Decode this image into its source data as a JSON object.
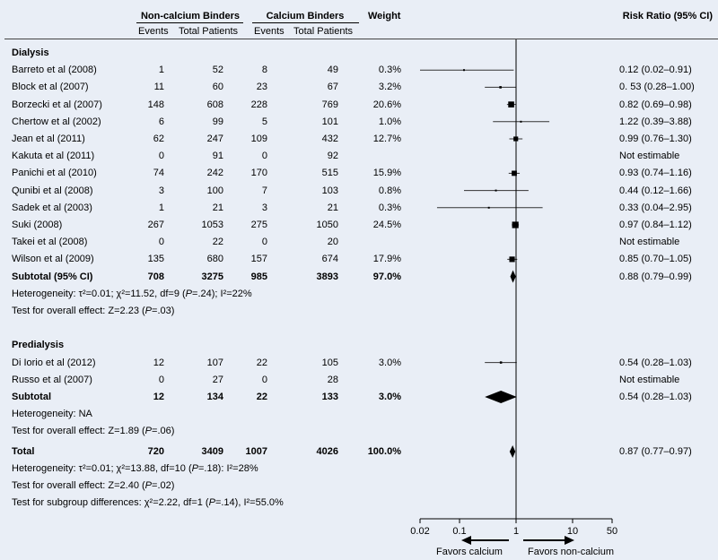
{
  "header": {
    "noncalc_group": "Non-calcium Binders",
    "calc_group": "Calcium Binders",
    "events": "Events",
    "total_patients": "Total Patients",
    "weight": "Weight",
    "rr": "Risk Ratio (95% CI)"
  },
  "groups": [
    {
      "name": "Dialysis",
      "studies": [
        {
          "study": "Barreto et al (2008)",
          "e1": "1",
          "n1": "52",
          "e2": "8",
          "n2": "49",
          "weight": "0.3%",
          "ci": "0.12 (0.02–0.91)"
        },
        {
          "study": "Block et al (2007)",
          "e1": "11",
          "n1": "60",
          "e2": "23",
          "n2": "67",
          "weight": "3.2%",
          "ci": "0. 53 (0.28–1.00)"
        },
        {
          "study": "Borzecki et al (2007)",
          "e1": "148",
          "n1": "608",
          "e2": "228",
          "n2": "769",
          "weight": "20.6%",
          "ci": "0.82 (0.69–0.98)"
        },
        {
          "study": "Chertow et al (2002)",
          "e1": "6",
          "n1": "99",
          "e2": "5",
          "n2": "101",
          "weight": "1.0%",
          "ci": "1.22 (0.39–3.88)"
        },
        {
          "study": "Jean et al (2011)",
          "e1": "62",
          "n1": "247",
          "e2": "109",
          "n2": "432",
          "weight": "12.7%",
          "ci": "0.99 (0.76–1.30)"
        },
        {
          "study": "Kakuta et al (2011)",
          "e1": "0",
          "n1": "91",
          "e2": "0",
          "n2": "92",
          "weight": "",
          "ci": "Not estimable"
        },
        {
          "study": "Panichi et al (2010)",
          "e1": "74",
          "n1": "242",
          "e2": "170",
          "n2": "515",
          "weight": "15.9%",
          "ci": "0.93 (0.74–1.16)"
        },
        {
          "study": "Qunibi et al (2008)",
          "e1": "3",
          "n1": "100",
          "e2": "7",
          "n2": "103",
          "weight": "0.8%",
          "ci": "0.44 (0.12–1.66)"
        },
        {
          "study": "Sadek et al (2003)",
          "e1": "1",
          "n1": "21",
          "e2": "3",
          "n2": "21",
          "weight": "0.3%",
          "ci": "0.33 (0.04–2.95)"
        },
        {
          "study": "Suki (2008)",
          "e1": "267",
          "n1": "1053",
          "e2": "275",
          "n2": "1050",
          "weight": "24.5%",
          "ci": "0.97 (0.84–1.12)"
        },
        {
          "study": "Takei et al (2008)",
          "e1": "0",
          "n1": "22",
          "e2": "0",
          "n2": "20",
          "weight": "",
          "ci": "Not estimable"
        },
        {
          "study": "Wilson et al (2009)",
          "e1": "135",
          "n1": "680",
          "e2": "157",
          "n2": "674",
          "weight": "17.9%",
          "ci": "0.85 (0.70–1.05)"
        }
      ],
      "subtotal": {
        "label": "Subtotal (95% CI)",
        "e1": "708",
        "n1": "3275",
        "e2": "985",
        "n2": "3893",
        "weight": "97.0%",
        "ci": "0.88 (0.79–0.99)"
      },
      "heterogeneity": "Heterogeneity: τ²=0.01; χ²=11.52, df=9 (P=.24); I²=22%",
      "overall": "Test for overall effect: Z=2.23 (P=.03)"
    },
    {
      "name": "Predialysis",
      "studies": [
        {
          "study": "Di Iorio et al (2012)",
          "e1": "12",
          "n1": "107",
          "e2": "22",
          "n2": "105",
          "weight": "3.0%",
          "ci": "0.54 (0.28–1.03)"
        },
        {
          "study": "Russo et al (2007)",
          "e1": "0",
          "n1": "27",
          "e2": "0",
          "n2": "28",
          "weight": "",
          "ci": "Not estimable"
        }
      ],
      "subtotal": {
        "label": "Subtotal",
        "e1": "12",
        "n1": "134",
        "e2": "22",
        "n2": "133",
        "weight": "3.0%",
        "ci": "0.54 (0.28–1.03)"
      },
      "heterogeneity": "Heterogeneity: NA",
      "overall": "Test for overall effect: Z=1.89 (P=.06)"
    }
  ],
  "total": {
    "label": "Total",
    "e1": "720",
    "n1": "3409",
    "e2": "1007",
    "n2": "4026",
    "weight": "100.0%",
    "ci": "0.87 (0.77–0.97)"
  },
  "total_heterogeneity": "Heterogeneity: τ²=0.01; χ²=13.88, df=10 (P=.18): I²=28%",
  "total_overall": "Test for overall effect: Z=2.40 (P=.02)",
  "subgroup_test": "Test for subgroup differences: χ²=2.22, df=1 (P=.14), I²=55.0%",
  "axis": {
    "ticks": [
      0.02,
      0.1,
      1,
      10,
      50
    ],
    "tick_labels": [
      "0.02",
      "0.1",
      "1",
      "10",
      "50"
    ],
    "favors_left": "Favors calcium",
    "favors_right": "Favors non-calcium"
  },
  "chart_data": {
    "type": "forest",
    "scale": "log",
    "xlim": [
      0.02,
      50
    ],
    "reference_line": 1,
    "studies": [
      {
        "label": "Barreto et al (2008)",
        "rr": 0.12,
        "lo": 0.02,
        "hi": 0.91,
        "weight": 0.3
      },
      {
        "label": "Block et al (2007)",
        "rr": 0.53,
        "lo": 0.28,
        "hi": 1.0,
        "weight": 3.2
      },
      {
        "label": "Borzecki et al (2007)",
        "rr": 0.82,
        "lo": 0.69,
        "hi": 0.98,
        "weight": 20.6
      },
      {
        "label": "Chertow et al (2002)",
        "rr": 1.22,
        "lo": 0.39,
        "hi": 3.88,
        "weight": 1.0
      },
      {
        "label": "Jean et al (2011)",
        "rr": 0.99,
        "lo": 0.76,
        "hi": 1.3,
        "weight": 12.7
      },
      {
        "label": "Kakuta et al (2011)",
        "rr": null,
        "lo": null,
        "hi": null,
        "weight": null
      },
      {
        "label": "Panichi et al (2010)",
        "rr": 0.93,
        "lo": 0.74,
        "hi": 1.16,
        "weight": 15.9
      },
      {
        "label": "Qunibi et al (2008)",
        "rr": 0.44,
        "lo": 0.12,
        "hi": 1.66,
        "weight": 0.8
      },
      {
        "label": "Sadek et al (2003)",
        "rr": 0.33,
        "lo": 0.04,
        "hi": 2.95,
        "weight": 0.3
      },
      {
        "label": "Suki (2008)",
        "rr": 0.97,
        "lo": 0.84,
        "hi": 1.12,
        "weight": 24.5
      },
      {
        "label": "Takei et al (2008)",
        "rr": null,
        "lo": null,
        "hi": null,
        "weight": null
      },
      {
        "label": "Wilson et al (2009)",
        "rr": 0.85,
        "lo": 0.7,
        "hi": 1.05,
        "weight": 17.9
      },
      {
        "label": "Subtotal (95% CI)",
        "rr": 0.88,
        "lo": 0.79,
        "hi": 0.99,
        "weight": 97.0,
        "summary": true
      },
      {
        "label": "Di Iorio et al (2012)",
        "rr": 0.54,
        "lo": 0.28,
        "hi": 1.03,
        "weight": 3.0
      },
      {
        "label": "Russo et al (2007)",
        "rr": null,
        "lo": null,
        "hi": null,
        "weight": null
      },
      {
        "label": "Subtotal",
        "rr": 0.54,
        "lo": 0.28,
        "hi": 1.03,
        "weight": 3.0,
        "summary": true
      },
      {
        "label": "Total",
        "rr": 0.87,
        "lo": 0.77,
        "hi": 0.97,
        "weight": 100.0,
        "summary": true
      }
    ]
  }
}
